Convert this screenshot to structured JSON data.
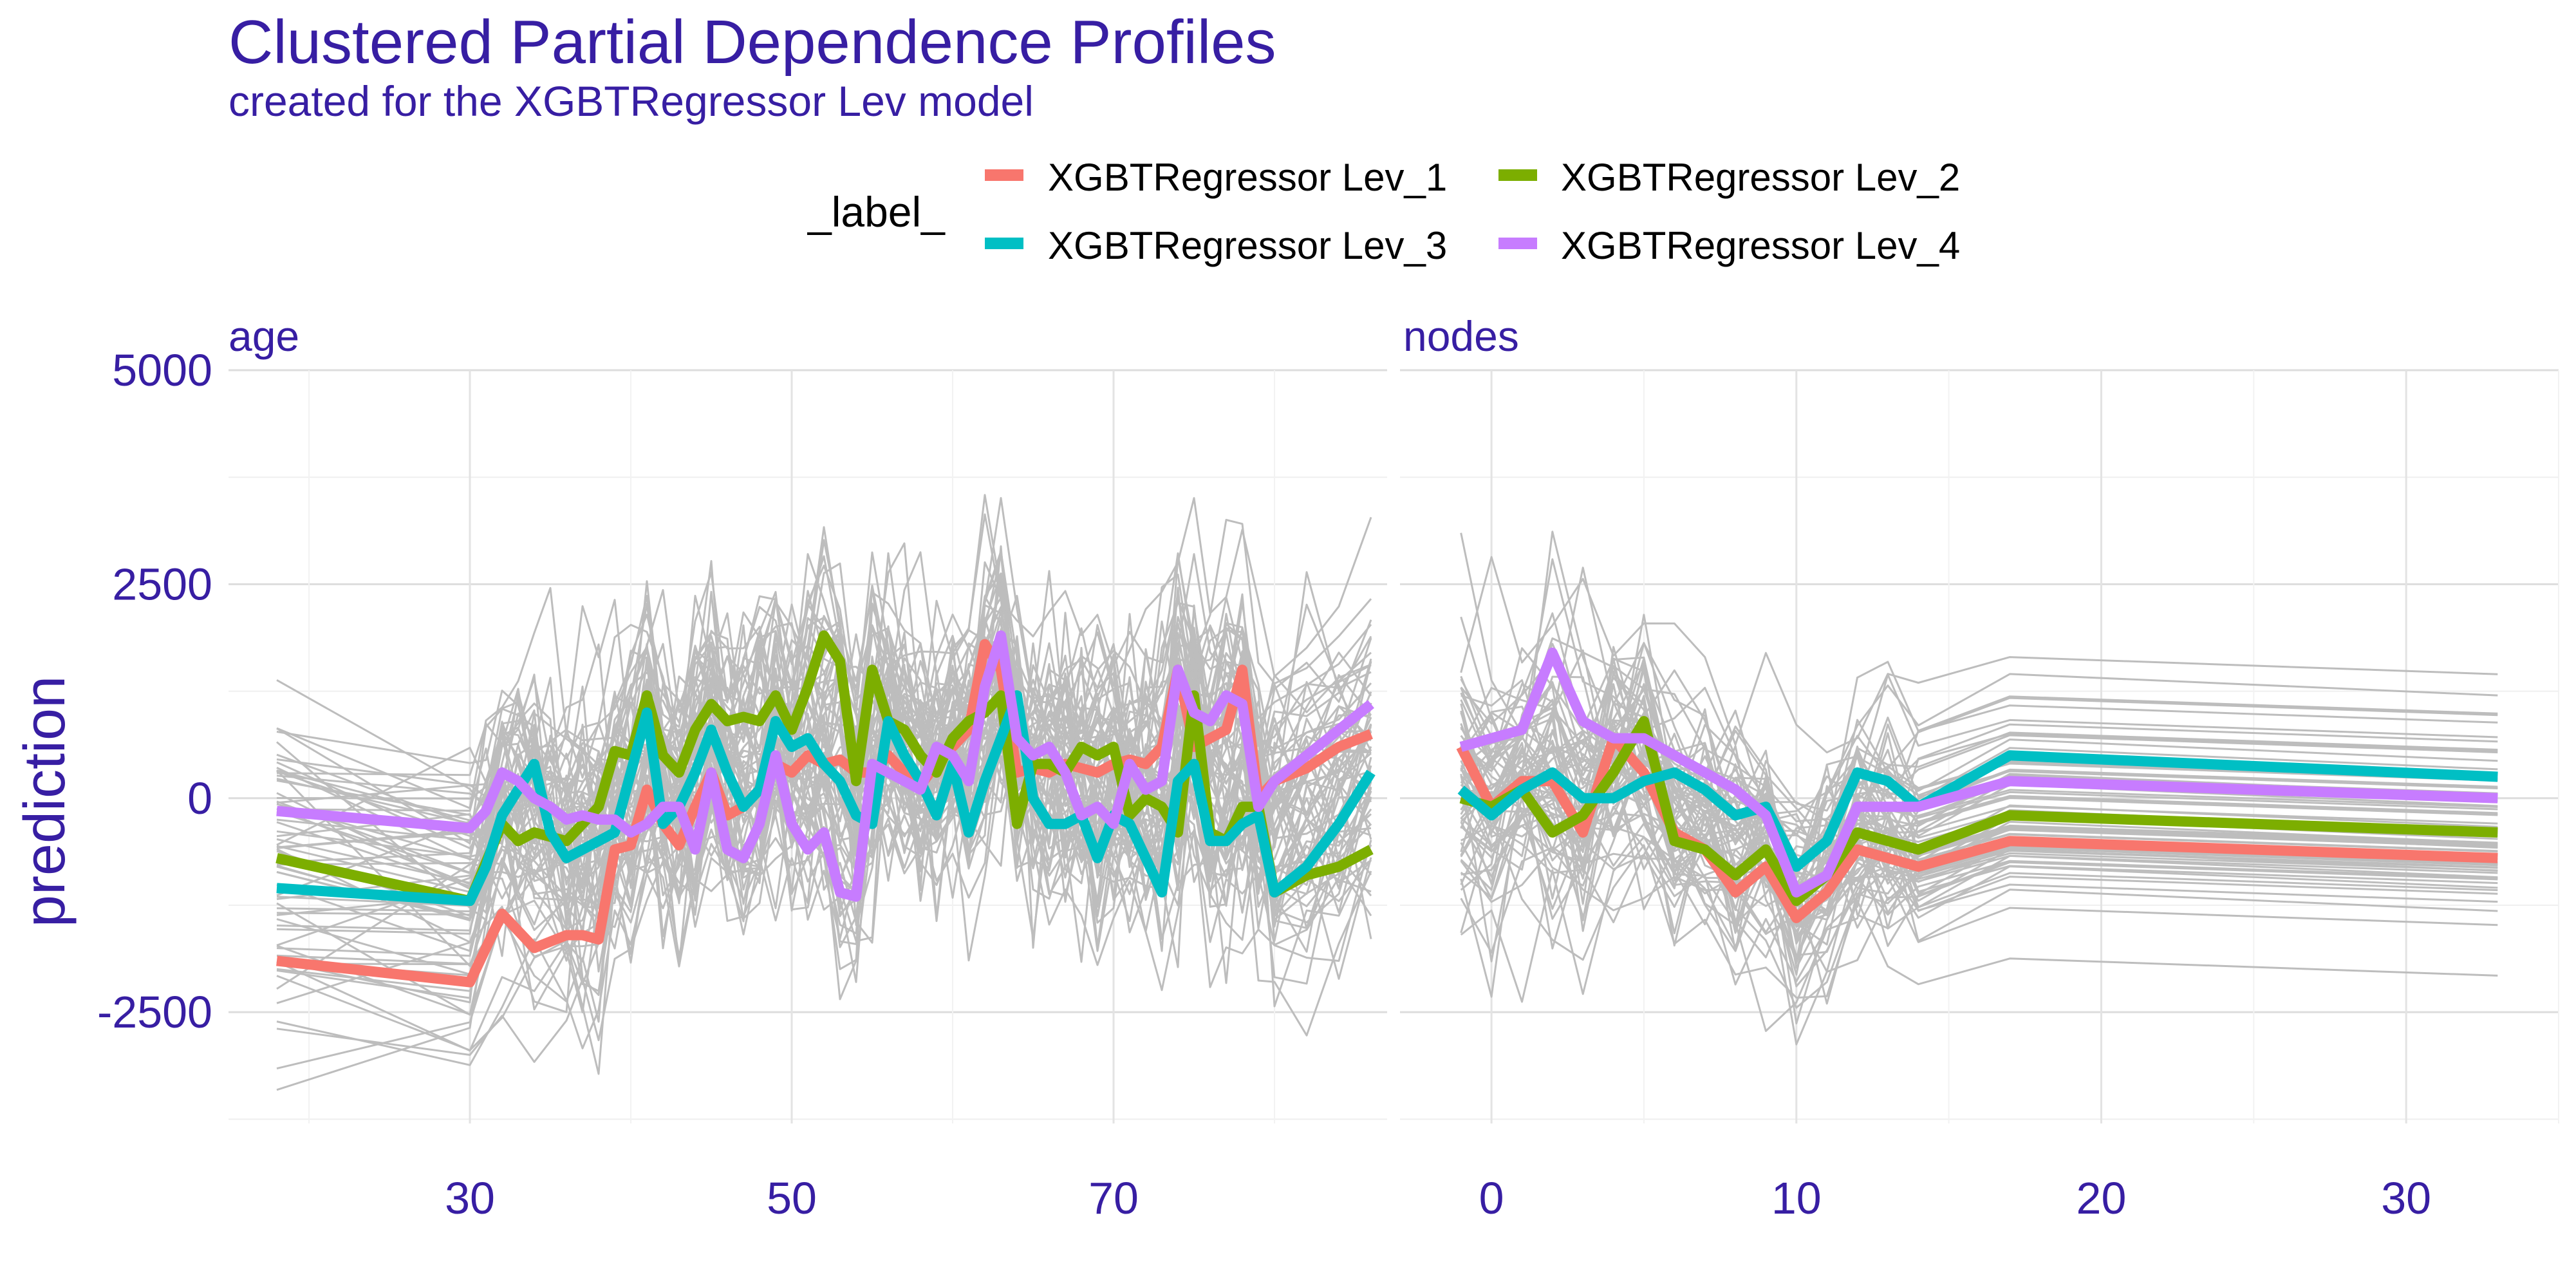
{
  "chart_data": {
    "type": "line",
    "title": "Clustered Partial Dependence Profiles",
    "subtitle": "created for the XGBTRegressor Lev model",
    "ylabel": "prediction",
    "legend": {
      "title": "_label_",
      "position": "top",
      "entries": [
        {
          "label": "XGBTRegressor Lev_1",
          "color": "#f8766d"
        },
        {
          "label": "XGBTRegressor Lev_2",
          "color": "#7cae00"
        },
        {
          "label": "XGBTRegressor Lev_3",
          "color": "#00bfc4"
        },
        {
          "label": "XGBTRegressor Lev_4",
          "color": "#c77cff"
        }
      ]
    },
    "background_profile_color": "#bdbdbd",
    "grid": true,
    "ylim": [
      -3800,
      5000
    ],
    "y_ticks": [
      -2500,
      0,
      2500,
      5000
    ],
    "panels": [
      {
        "name": "age",
        "xlim": [
          15,
          87
        ],
        "x_ticks": [
          30,
          50,
          70
        ],
        "series": [
          {
            "name": "XGBTRegressor Lev_1",
            "color": "#f8766d",
            "x": [
              18,
              30,
              32,
              34,
              36,
              37,
              38,
              39,
              40,
              41,
              42,
              43,
              44,
              45,
              46,
              47,
              48,
              49,
              50,
              51,
              52,
              53,
              54,
              55,
              56,
              57,
              58,
              59,
              60,
              61,
              62,
              63,
              64,
              65,
              66,
              67,
              68,
              69,
              70,
              71,
              72,
              73,
              74,
              75,
              76,
              77,
              78,
              79,
              80,
              82,
              84,
              86
            ],
            "y": [
              -1900,
              -2150,
              -1350,
              -1750,
              -1600,
              -1600,
              -1650,
              -600,
              -550,
              100,
              -300,
              -550,
              -100,
              300,
              -200,
              -100,
              100,
              400,
              300,
              500,
              400,
              450,
              300,
              300,
              500,
              300,
              150,
              400,
              600,
              800,
              1800,
              1500,
              300,
              350,
              300,
              400,
              350,
              300,
              400,
              450,
              400,
              600,
              1500,
              600,
              700,
              800,
              1500,
              0,
              200,
              350,
              600,
              750
            ]
          },
          {
            "name": "XGBTRegressor Lev_2",
            "color": "#7cae00",
            "x": [
              18,
              30,
              32,
              33,
              34,
              36,
              37,
              38,
              39,
              40,
              41,
              42,
              43,
              44,
              45,
              46,
              47,
              48,
              49,
              50,
              51,
              52,
              53,
              54,
              55,
              56,
              57,
              58,
              59,
              60,
              61,
              62,
              63,
              64,
              65,
              66,
              67,
              68,
              69,
              70,
              71,
              72,
              73,
              74,
              75,
              76,
              77,
              78,
              79,
              80,
              82,
              84,
              86
            ],
            "y": [
              -700,
              -1200,
              -300,
              -500,
              -400,
              -500,
              -300,
              -100,
              550,
              500,
              1200,
              500,
              300,
              800,
              1100,
              900,
              950,
              900,
              1200,
              800,
              1300,
              1900,
              1600,
              200,
              1500,
              900,
              800,
              500,
              300,
              700,
              900,
              1000,
              1200,
              -300,
              400,
              400,
              300,
              600,
              500,
              600,
              -200,
              0,
              -100,
              -400,
              1200,
              -400,
              -500,
              -100,
              -100,
              -1100,
              -900,
              -800,
              -600
            ]
          },
          {
            "name": "XGBTRegressor Lev_3",
            "color": "#00bfc4",
            "x": [
              18,
              30,
              31,
              32,
              33,
              34,
              35,
              36,
              37,
              38,
              39,
              40,
              41,
              42,
              43,
              44,
              45,
              46,
              47,
              48,
              49,
              50,
              51,
              52,
              53,
              54,
              55,
              56,
              57,
              58,
              59,
              60,
              61,
              62,
              63,
              64,
              65,
              66,
              67,
              68,
              69,
              70,
              71,
              72,
              73,
              74,
              75,
              76,
              77,
              78,
              79,
              80,
              82,
              84,
              86
            ],
            "y": [
              -1050,
              -1200,
              -800,
              -200,
              100,
              400,
              -400,
              -700,
              -600,
              -500,
              -400,
              300,
              1000,
              -300,
              -100,
              300,
              800,
              300,
              -100,
              100,
              900,
              600,
              700,
              400,
              200,
              -200,
              -300,
              900,
              500,
              200,
              -200,
              400,
              -400,
              200,
              700,
              1200,
              0,
              -300,
              -300,
              -200,
              -700,
              -200,
              -300,
              -700,
              -1100,
              200,
              400,
              -500,
              -500,
              -300,
              -200,
              -1100,
              -800,
              -300,
              300
            ]
          },
          {
            "name": "XGBTRegressor Lev_4",
            "color": "#c77cff",
            "x": [
              18,
              30,
              31,
              32,
              33,
              34,
              35,
              36,
              37,
              38,
              39,
              40,
              41,
              42,
              43,
              44,
              45,
              46,
              47,
              48,
              49,
              50,
              51,
              52,
              53,
              54,
              55,
              56,
              57,
              58,
              59,
              60,
              61,
              62,
              63,
              64,
              65,
              66,
              67,
              68,
              69,
              70,
              71,
              72,
              73,
              74,
              75,
              76,
              77,
              78,
              79,
              80,
              82,
              84,
              86
            ],
            "y": [
              -150,
              -350,
              -150,
              300,
              200,
              0,
              -100,
              -250,
              -200,
              -250,
              -250,
              -400,
              -300,
              -100,
              -100,
              -600,
              300,
              -600,
              -700,
              -300,
              500,
              -300,
              -600,
              -400,
              -1100,
              -1150,
              400,
              300,
              200,
              100,
              600,
              500,
              200,
              1300,
              1900,
              700,
              500,
              600,
              300,
              -200,
              -100,
              -300,
              400,
              100,
              200,
              1500,
              1000,
              900,
              1200,
              1100,
              -100,
              200,
              500,
              800,
              1100
            ]
          }
        ]
      },
      {
        "name": "nodes",
        "xlim": [
          -3,
          35
        ],
        "x_ticks": [
          0,
          10,
          20,
          30
        ],
        "series": [
          {
            "name": "XGBTRegressor Lev_1",
            "color": "#f8766d",
            "x": [
              -1,
              0,
              1,
              2,
              3,
              4,
              5,
              6,
              7,
              8,
              9,
              10,
              11,
              12,
              13,
              14,
              17,
              33
            ],
            "y": [
              600,
              -100,
              200,
              200,
              -400,
              700,
              300,
              -400,
              -600,
              -1100,
              -800,
              -1400,
              -1100,
              -600,
              -700,
              -800,
              -500,
              -700
            ]
          },
          {
            "name": "XGBTRegressor Lev_2",
            "color": "#7cae00",
            "x": [
              -1,
              0,
              1,
              2,
              3,
              4,
              5,
              6,
              7,
              8,
              9,
              10,
              11,
              12,
              13,
              14,
              17,
              33
            ],
            "y": [
              0,
              -100,
              100,
              -400,
              -200,
              300,
              900,
              -500,
              -600,
              -900,
              -600,
              -1200,
              -900,
              -400,
              -500,
              -600,
              -200,
              -400
            ]
          },
          {
            "name": "XGBTRegressor Lev_3",
            "color": "#00bfc4",
            "x": [
              -1,
              0,
              1,
              2,
              3,
              4,
              5,
              6,
              7,
              8,
              9,
              10,
              11,
              12,
              13,
              14,
              17,
              33
            ],
            "y": [
              100,
              -200,
              100,
              300,
              0,
              0,
              200,
              300,
              100,
              -200,
              -100,
              -800,
              -500,
              300,
              200,
              -100,
              500,
              250
            ]
          },
          {
            "name": "XGBTRegressor Lev_4",
            "color": "#c77cff",
            "x": [
              -1,
              0,
              1,
              2,
              3,
              4,
              5,
              6,
              7,
              8,
              9,
              10,
              11,
              12,
              13,
              14,
              17,
              33
            ],
            "y": [
              600,
              700,
              800,
              1700,
              900,
              700,
              700,
              500,
              300,
              100,
              -200,
              -1100,
              -900,
              -100,
              -100,
              -100,
              200,
              0
            ]
          }
        ]
      }
    ]
  }
}
